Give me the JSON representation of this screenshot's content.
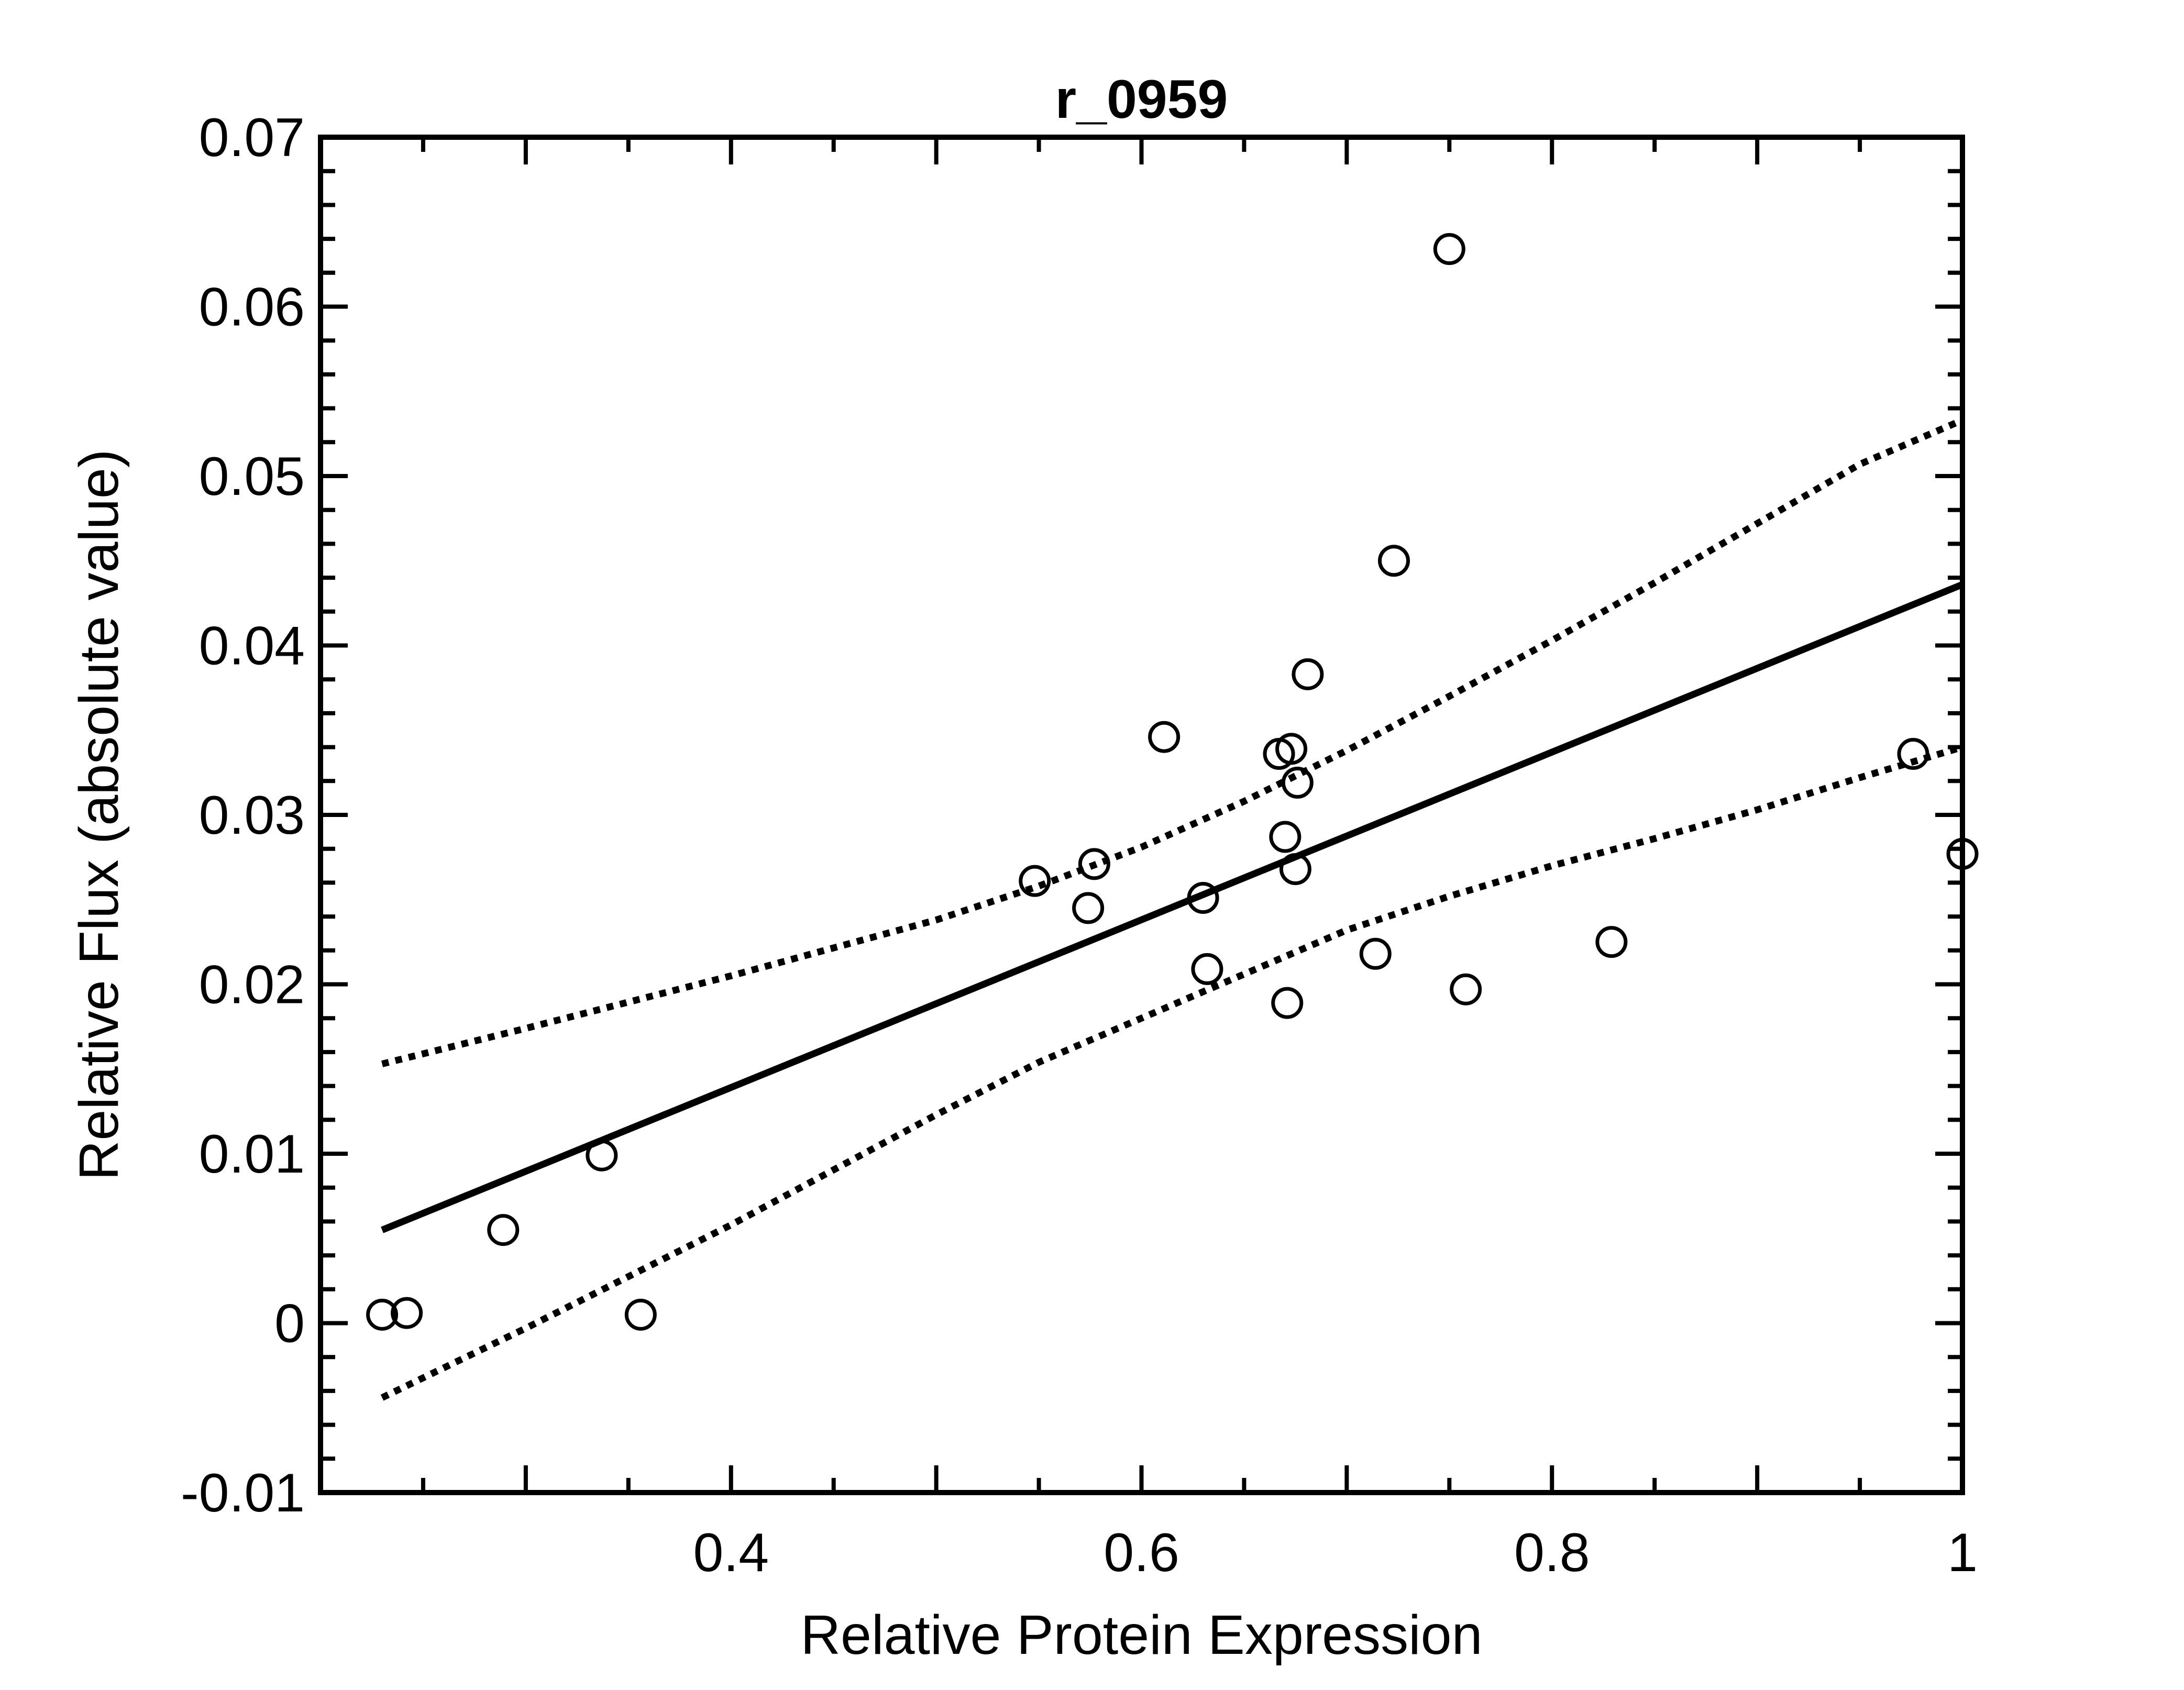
{
  "chart_data": {
    "type": "scatter",
    "title": "r_0959",
    "xlabel": "Relative Protein Expression",
    "ylabel": "Relative Flux (absolute value)",
    "xlim": [
      0.2,
      1.0
    ],
    "ylim": [
      -0.01,
      0.07
    ],
    "x_ticks": [
      0.4,
      0.6,
      0.8,
      1.0
    ],
    "x_tick_labels": [
      "0.4",
      "0.6",
      "0.8",
      "1"
    ],
    "y_ticks": [
      -0.01,
      0,
      0.01,
      0.02,
      0.03,
      0.04,
      0.05,
      0.06,
      0.07
    ],
    "y_tick_labels": [
      "-0.01",
      "0",
      "0.01",
      "0.02",
      "0.03",
      "0.04",
      "0.05",
      "0.06",
      "0.07"
    ],
    "grid": false,
    "points": [
      {
        "x": 0.23,
        "y": 0.0005
      },
      {
        "x": 0.242,
        "y": 0.0006
      },
      {
        "x": 0.289,
        "y": 0.0055
      },
      {
        "x": 0.337,
        "y": 0.0099
      },
      {
        "x": 0.356,
        "y": 0.0005
      },
      {
        "x": 0.548,
        "y": 0.0261
      },
      {
        "x": 0.574,
        "y": 0.0245
      },
      {
        "x": 0.577,
        "y": 0.0271
      },
      {
        "x": 0.611,
        "y": 0.0346
      },
      {
        "x": 0.63,
        "y": 0.0251
      },
      {
        "x": 0.632,
        "y": 0.0209
      },
      {
        "x": 0.667,
        "y": 0.0336
      },
      {
        "x": 0.67,
        "y": 0.0287
      },
      {
        "x": 0.671,
        "y": 0.0189
      },
      {
        "x": 0.673,
        "y": 0.0339
      },
      {
        "x": 0.675,
        "y": 0.0268
      },
      {
        "x": 0.676,
        "y": 0.0319
      },
      {
        "x": 0.681,
        "y": 0.0383
      },
      {
        "x": 0.714,
        "y": 0.0218
      },
      {
        "x": 0.723,
        "y": 0.045
      },
      {
        "x": 0.75,
        "y": 0.0634
      },
      {
        "x": 0.758,
        "y": 0.0197
      },
      {
        "x": 0.829,
        "y": 0.0225
      },
      {
        "x": 0.976,
        "y": 0.0336
      },
      {
        "x": 1.0,
        "y": 0.0277
      }
    ],
    "fit_line": {
      "x": [
        0.23,
        1.0
      ],
      "y": [
        0.0055,
        0.0436
      ]
    },
    "confidence_upper": {
      "x": [
        0.23,
        0.3,
        0.4,
        0.5,
        0.55,
        0.6,
        0.65,
        0.7,
        0.75,
        0.8,
        0.85,
        0.9,
        0.95,
        1.0
      ],
      "y": [
        0.0153,
        0.0174,
        0.0205,
        0.0238,
        0.0258,
        0.0281,
        0.0308,
        0.0338,
        0.037,
        0.0403,
        0.0437,
        0.0472,
        0.0507,
        0.0533
      ]
    },
    "confidence_lower": {
      "x": [
        0.23,
        0.3,
        0.4,
        0.5,
        0.55,
        0.6,
        0.65,
        0.7,
        0.75,
        0.8,
        0.85,
        0.9,
        0.95,
        1.0
      ],
      "y": [
        -0.0044,
        -0.0003,
        0.0058,
        0.0123,
        0.0154,
        0.018,
        0.0206,
        0.0232,
        0.0252,
        0.027,
        0.0286,
        0.0303,
        0.0322,
        0.034
      ]
    }
  }
}
